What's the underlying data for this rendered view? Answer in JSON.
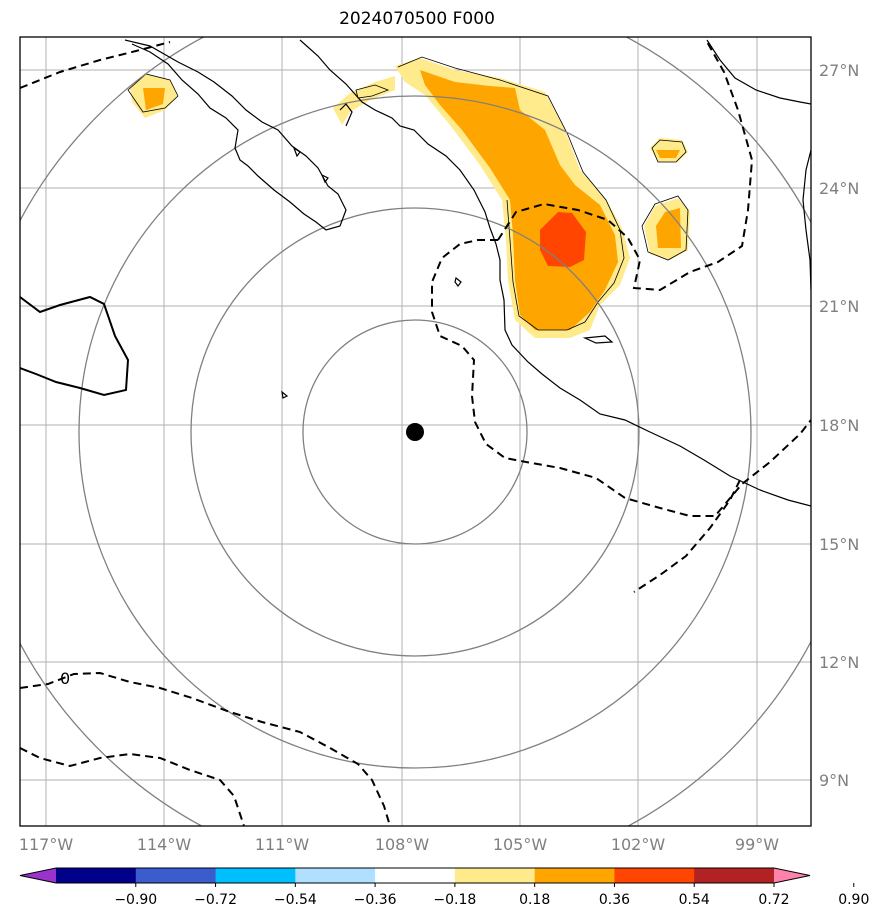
{
  "title": "2024070500 F000",
  "map": {
    "lat_labels": [
      "27°N",
      "24°N",
      "21°N",
      "18°N",
      "15°N",
      "12°N",
      "9°N"
    ],
    "lon_labels": [
      "117°W",
      "114°W",
      "111°W",
      "108°W",
      "105°W",
      "102°W",
      "99°W"
    ],
    "contour_label": "0",
    "storm_center": {
      "lon": -107.7,
      "lat": 17.8
    }
  },
  "colorbar": {
    "ticks": [
      "−0.90",
      "−0.72",
      "−0.54",
      "−0.36",
      "−0.18",
      "0.18",
      "0.36",
      "0.54",
      "0.72",
      "0.90"
    ],
    "colors": [
      "#9933cc",
      "#00008b",
      "#3a5ccc",
      "#00bfff",
      "#b0e0ff",
      "#ffffff",
      "#ffeb8c",
      "#ffa500",
      "#ff4500",
      "#b22222",
      "#ff82ab"
    ]
  },
  "colors": {
    "grid": "#b0b0b0",
    "rings": "#808080",
    "shade_light": "#ffeb8c",
    "shade_mid": "#ffa500",
    "shade_high": "#ff4500"
  }
}
